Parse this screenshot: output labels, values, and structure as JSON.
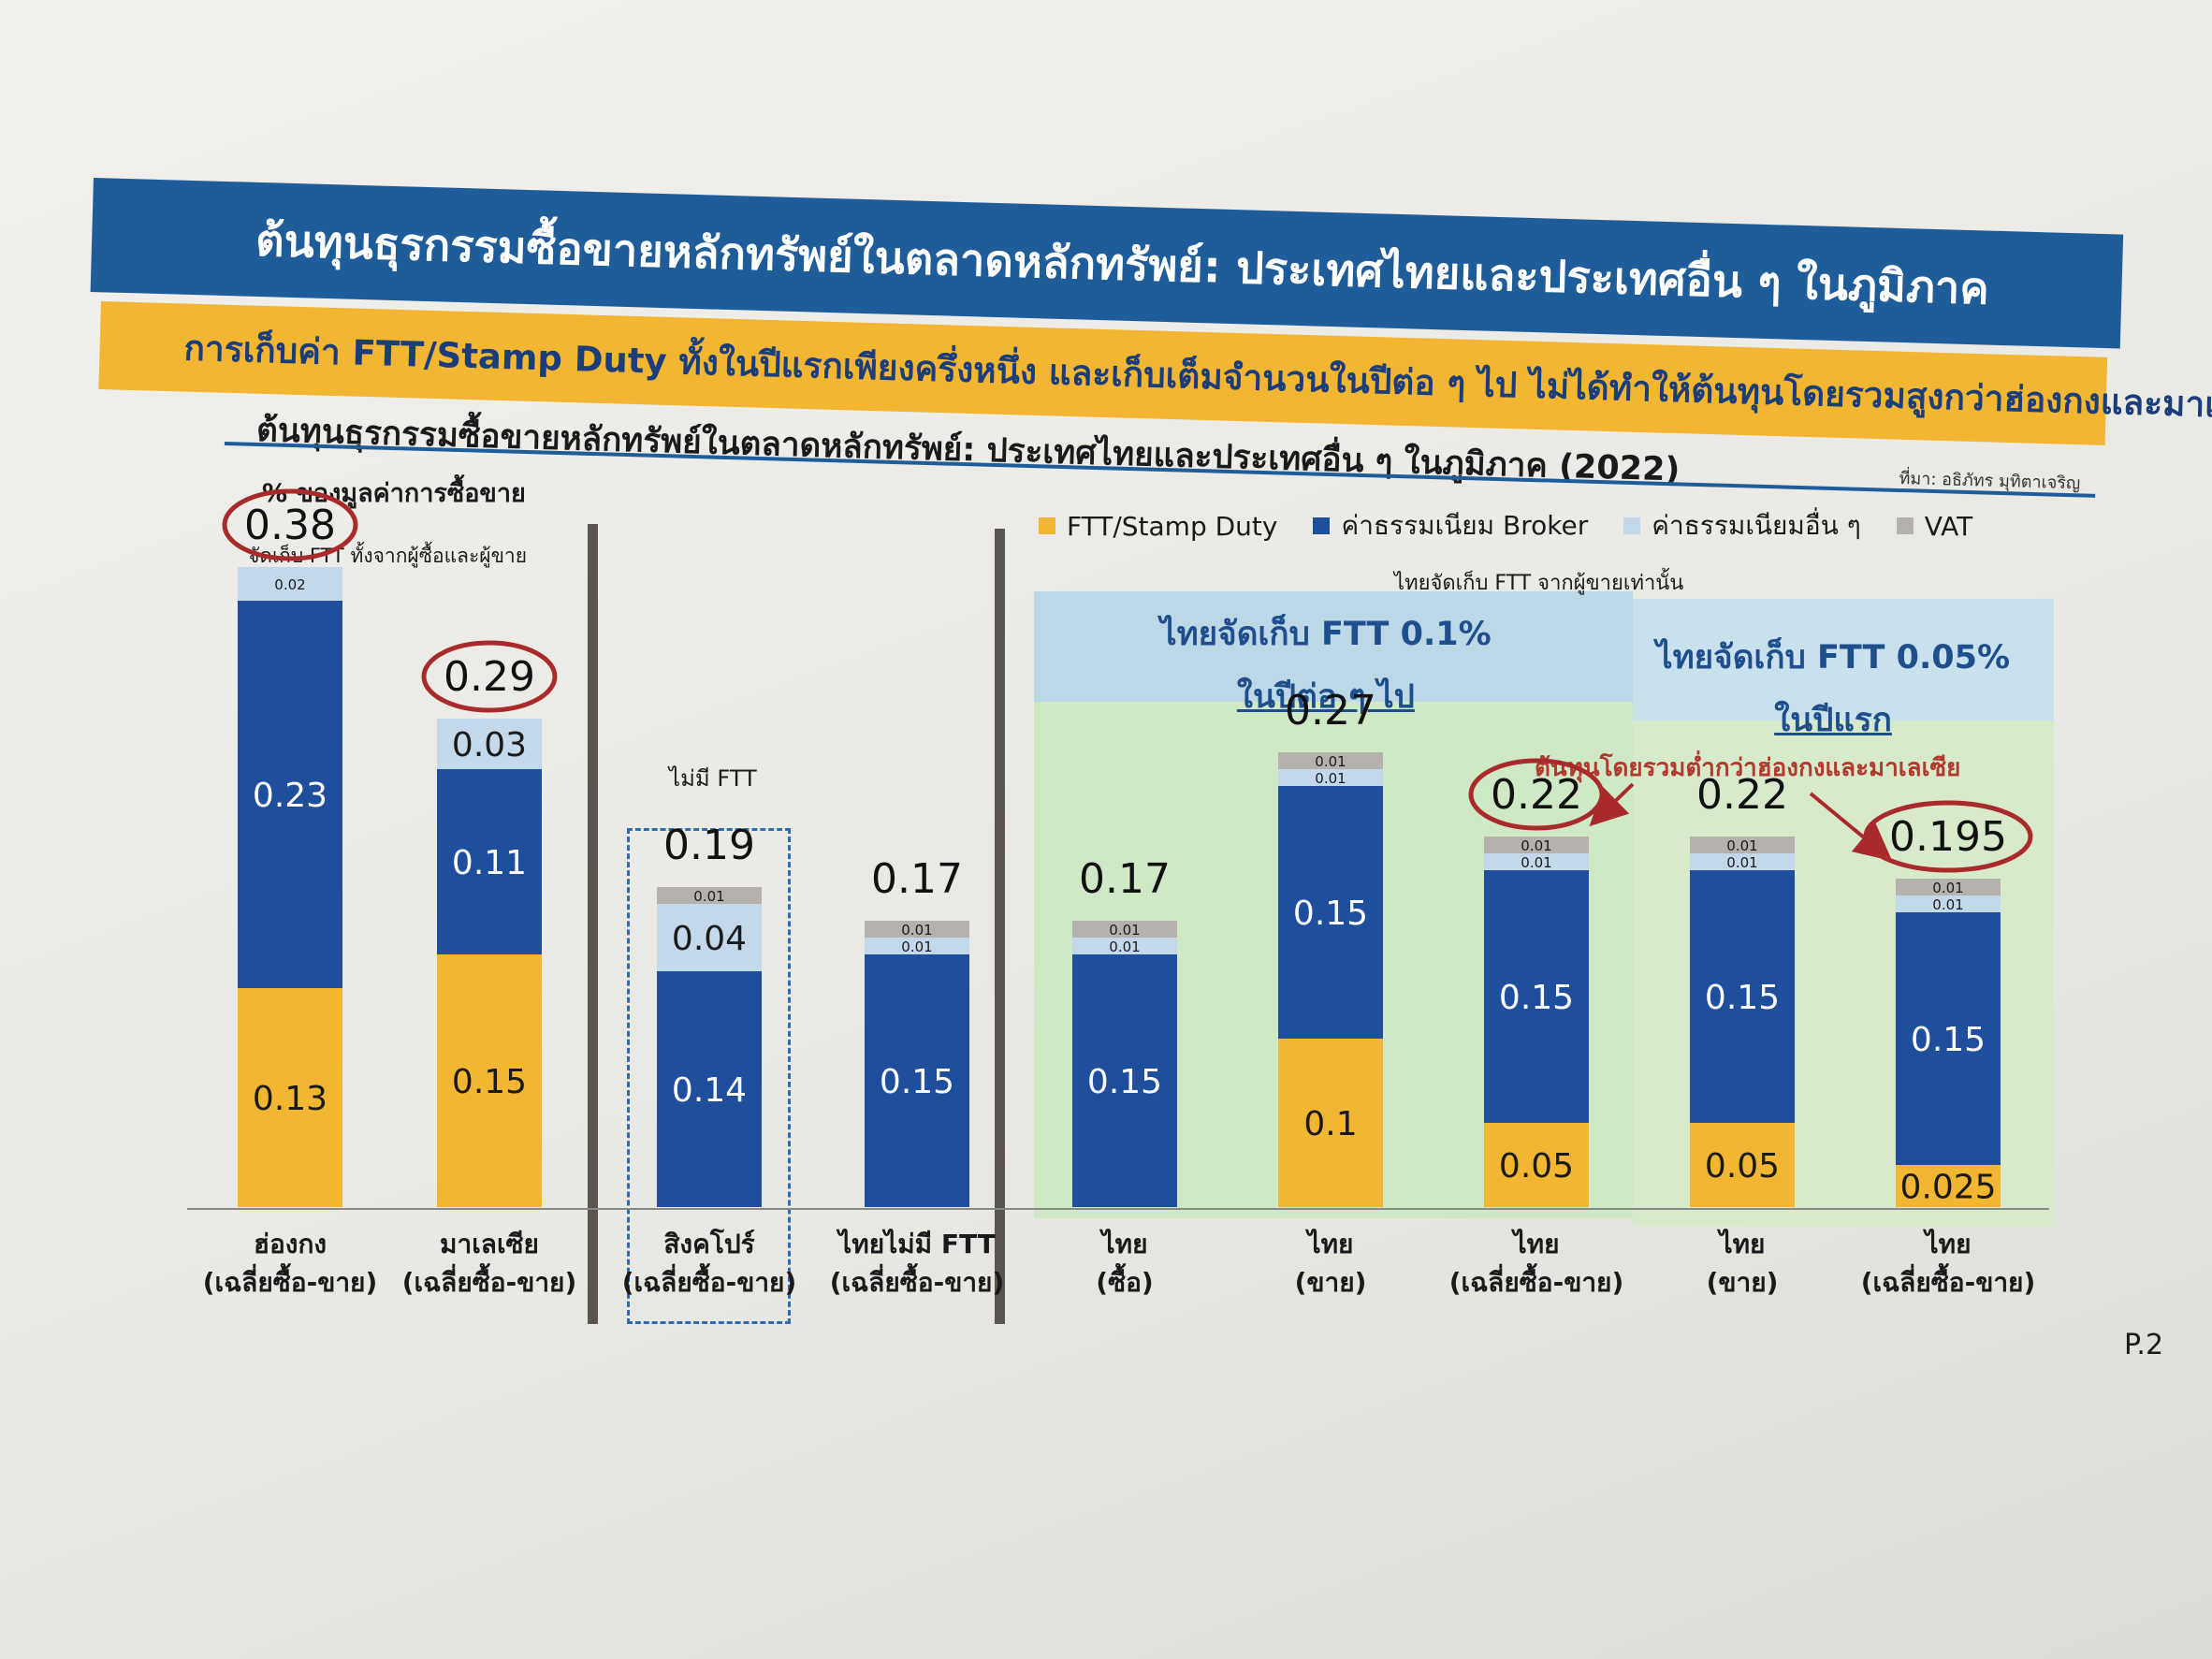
{
  "header": {
    "title": "ต้นทุนธุรกรรมซื้อขายหลักทรัพย์ในตลาดหลักทรัพย์: ประเทศไทยและประเทศอื่น ๆ ในภูมิภาค",
    "subtitle": "การเก็บค่า FTT/Stamp Duty ทั้งในปีแรกเพียงครึ่งหนึ่ง และเก็บเต็มจำนวนในปีต่อ ๆ ไป ไม่ได้ทำให้ต้นทุนโดยรวมสูงกว่าฮ่องกงและมาเลเซีย"
  },
  "chart_title": "ต้นทุนธุรกรรมซื้อขายหลักทรัพย์ในตลาดหลักทรัพย์: ประเทศไทยและประเทศอื่น ๆ ในภูมิภาค (2022)",
  "source": "ที่มา: อธิภัทร มุทิตาเจริญ",
  "y_label": "% ของมูลค่าการซื้อขาย",
  "note_ftt": "จัดเก็บ FTT ทั้งจากผู้ซื้อและผู้ขาย",
  "no_ftt": "ไม่มี FTT",
  "thai_note": "ไทยจัดเก็บ FTT จากผู้ขายเท่านั้น",
  "region_a": {
    "line1": "ไทยจัดเก็บ FTT 0.1%",
    "line2": "ในปีต่อ ๆ ไป"
  },
  "region_b": {
    "line1": "ไทยจัดเก็บ FTT 0.05%",
    "line2": "ในปีแรก"
  },
  "lower_note": "ต้นทุนโดยรวมต่ำกว่าฮ่องกงและมาเลเซีย",
  "page": "P.2",
  "colors": {
    "ftt": "#f2b632",
    "broker": "#1f4e9c",
    "other": "#c3d8ea",
    "vat": "#b5b2ad",
    "circle": "#a82a2a"
  },
  "chart_data": {
    "type": "bar",
    "stacked": true,
    "legend": [
      "FTT/Stamp Duty",
      "ค่าธรรมเนียม Broker",
      "ค่าธรรมเนียมอื่น ๆ",
      "VAT"
    ],
    "legend_position": "top",
    "categories": [
      [
        "ฮ่องกง",
        "(เฉลี่ยซื้อ-ขาย)"
      ],
      [
        "มาเลเซีย",
        "(เฉลี่ยซื้อ-ขาย)"
      ],
      [
        "สิงคโปร์",
        "(เฉลี่ยซื้อ-ขาย)"
      ],
      [
        "ไทยไม่มี FTT",
        "(เฉลี่ยซื้อ-ขาย)"
      ],
      [
        "ไทย",
        "(ซื้อ)"
      ],
      [
        "ไทย",
        "(ขาย)"
      ],
      [
        "ไทย",
        "(เฉลี่ยซื้อ-ขาย)"
      ],
      [
        "ไทย",
        "(ขาย)"
      ],
      [
        "ไทย",
        "(เฉลี่ยซื้อ-ขาย)"
      ]
    ],
    "series": [
      {
        "name": "FTT/Stamp Duty",
        "values": [
          0.13,
          0.15,
          0,
          0,
          0,
          0.1,
          0.05,
          0.05,
          0.025
        ],
        "labels": [
          "0.13",
          "0.15",
          "",
          "",
          "",
          "0.1",
          "0.05",
          "0.05",
          "0.025"
        ]
      },
      {
        "name": "ค่าธรรมเนียม Broker",
        "values": [
          0.23,
          0.11,
          0.14,
          0.15,
          0.15,
          0.15,
          0.15,
          0.15,
          0.15
        ],
        "labels": [
          "0.23",
          "0.11",
          "0.14",
          "0.15",
          "0.15",
          "0.15",
          "0.15",
          "0.15",
          "0.15"
        ]
      },
      {
        "name": "ค่าธรรมเนียมอื่น ๆ",
        "values": [
          0.02,
          0.03,
          0.04,
          0.01,
          0.01,
          0.01,
          0.01,
          0.01,
          0.01
        ],
        "labels": [
          "0.02",
          "0.03",
          "0.04",
          "0.01",
          "0.01",
          "0.01",
          "0.01",
          "0.01",
          "0.01"
        ]
      },
      {
        "name": "VAT",
        "values": [
          0,
          0,
          0.01,
          0.01,
          0.01,
          0.01,
          0.01,
          0.01,
          0.01
        ],
        "labels": [
          "",
          "",
          "0.01",
          "0.01",
          "0.01",
          "0.01",
          "0.01",
          "0.01",
          "0.01"
        ]
      }
    ],
    "totals": [
      "0.38",
      "0.29",
      "0.19",
      "0.17",
      "0.17",
      "0.27",
      "0.22",
      "0.22",
      "0.195"
    ],
    "circled": [
      true,
      true,
      false,
      false,
      false,
      false,
      true,
      false,
      true
    ],
    "ylim": [
      0,
      0.4
    ]
  }
}
